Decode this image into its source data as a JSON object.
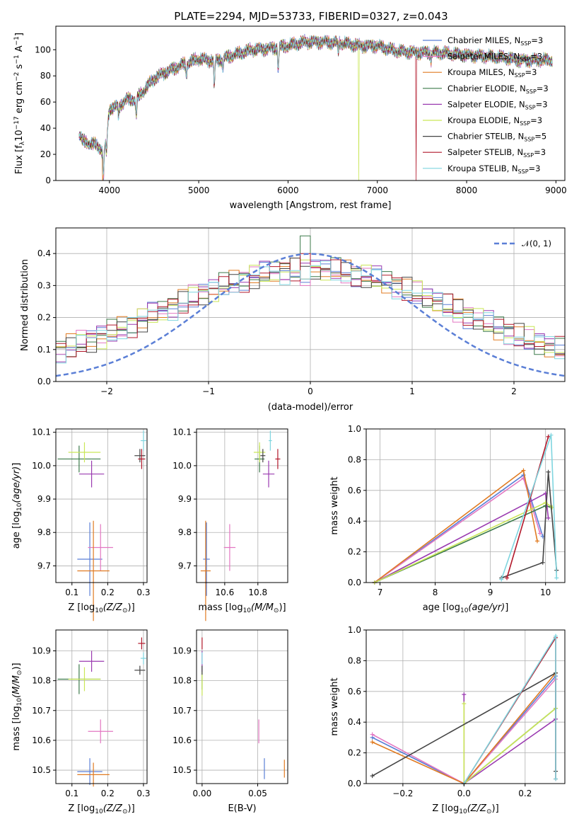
{
  "chart_data": [
    {
      "id": "spectrum",
      "type": "line",
      "title": "PLATE=2294, MJD=53733, FIBERID=0327, z=0.043",
      "xlabel": "wavelength [Angstrom, rest frame]",
      "ylabel": "Flux [f_λ 10^-17 erg cm^-2 s^-1 A^-1]",
      "xlim": [
        3400,
        9100
      ],
      "ylim": [
        0,
        118
      ],
      "xticks": [
        4000,
        5000,
        6000,
        7000,
        8000,
        9000
      ],
      "yticks": [
        0,
        20,
        40,
        60,
        80,
        100
      ],
      "legend_position": "top-right",
      "grid": false,
      "continuum": {
        "x": [
          3660,
          3700,
          3800,
          3850,
          3900,
          3930,
          3960,
          4000,
          4100,
          4200,
          4300,
          4400,
          4500,
          4600,
          4800,
          5000,
          5100,
          5200,
          5400,
          5600,
          5800,
          6000,
          6200,
          6400,
          6600,
          6800,
          7000,
          7200,
          7400,
          7600,
          7800,
          8000,
          8200,
          8400,
          8600,
          8800,
          8960
        ],
        "y": [
          36,
          30,
          28,
          27,
          25,
          20,
          30,
          55,
          57,
          62,
          62,
          70,
          78,
          82,
          88,
          93,
          92,
          92,
          96,
          100,
          101,
          103,
          106,
          106,
          105,
          103,
          103,
          99,
          98,
          98,
          97,
          96,
          95,
          94,
          92,
          92,
          92
        ]
      },
      "series": [
        {
          "name": "Chabrier MILES, N_SSP=3",
          "color": "#5b7fd6",
          "drop_at": null
        },
        {
          "name": "Salpeter MILES, N_SSP=3",
          "color": "#e377c2",
          "drop_at": null
        },
        {
          "name": "Kroupa MILES, N_SSP=3",
          "color": "#e07b22",
          "drop_at": 3920
        },
        {
          "name": "Chabrier ELODIE, N_SSP=3",
          "color": "#3c7a4a",
          "drop_at": null
        },
        {
          "name": "Salpeter ELODIE, N_SSP=3",
          "color": "#9a3ab0",
          "drop_at": null
        },
        {
          "name": "Kroupa ELODIE, N_SSP=3",
          "color": "#c9e657",
          "drop_at": 6790
        },
        {
          "name": "Chabrier STELIB, N_SSP=5",
          "color": "#444444",
          "drop_at": null
        },
        {
          "name": "Salpeter STELIB, N_SSP=3",
          "color": "#b2182b",
          "drop_at": 7430
        },
        {
          "name": "Kroupa STELIB, N_SSP=3",
          "color": "#7fd5df",
          "drop_at": null
        }
      ]
    },
    {
      "id": "residuals",
      "type": "step-histogram",
      "xlabel": "(data-model)/error",
      "ylabel": "Normed distribution",
      "xlim": [
        -2.5,
        2.5
      ],
      "ylim": [
        0,
        0.48
      ],
      "xticks": [
        -2,
        -1,
        0,
        1,
        2
      ],
      "yticks": [
        0.0,
        0.1,
        0.2,
        0.3,
        0.4
      ],
      "grid": true,
      "legend_position": "top-right",
      "gaussian": {
        "name": "𝒩(0, 1)",
        "mean": 0,
        "sigma": 1,
        "color": "#5b7fd6"
      },
      "bin_width": 0.1,
      "series_colors": [
        "#5b7fd6",
        "#e377c2",
        "#e07b22",
        "#3c7a4a",
        "#9a3ab0",
        "#c9e657",
        "#444444",
        "#b2182b",
        "#7fd5df"
      ],
      "peak_values": [
        0.31,
        0.3,
        0.32,
        0.455,
        0.37,
        0.38,
        0.36,
        0.4,
        0.32
      ]
    },
    {
      "id": "age_vs_Z",
      "type": "scatter-errorbar",
      "xlabel": "Z [log10(Z/Z⊙)]",
      "ylabel": "age [log10(age/yr)]",
      "xlim": [
        0.055,
        0.31
      ],
      "ylim": [
        9.65,
        10.11
      ],
      "xticks": [
        0.1,
        0.2,
        0.3
      ],
      "xtick_labels": [
        "0.1",
        "0.2",
        "0.3"
      ],
      "yticks": [
        9.7,
        9.8,
        9.9,
        10.0,
        10.1
      ],
      "grid": true,
      "points": [
        {
          "color": "#5b7fd6",
          "x": 0.15,
          "xerr": 0.035,
          "y": 9.72,
          "yerr": 0.11
        },
        {
          "color": "#e377c2",
          "x": 0.18,
          "xerr": 0.035,
          "y": 9.755,
          "yerr": 0.07
        },
        {
          "color": "#e07b22",
          "x": 0.16,
          "xerr": 0.045,
          "y": 9.685,
          "yerr": 0.15
        },
        {
          "color": "#3c7a4a",
          "x": 0.12,
          "xerr": 0.06,
          "y": 10.02,
          "yerr": 0.04
        },
        {
          "color": "#9a3ab0",
          "x": 0.155,
          "xerr": 0.035,
          "y": 9.975,
          "yerr": 0.04
        },
        {
          "color": "#c9e657",
          "x": 0.135,
          "xerr": 0.045,
          "y": 10.04,
          "yerr": 0.03
        },
        {
          "color": "#444444",
          "x": 0.29,
          "xerr": 0.015,
          "y": 10.03,
          "yerr": 0.02
        },
        {
          "color": "#b2182b",
          "x": 0.295,
          "xerr": 0.01,
          "y": 10.02,
          "yerr": 0.03
        },
        {
          "color": "#7fd5df",
          "x": 0.3,
          "xerr": 0.008,
          "y": 10.075,
          "yerr": 0.03
        }
      ]
    },
    {
      "id": "age_vs_mass",
      "type": "scatter-errorbar",
      "xlabel": "mass [log10(M/M⊙)]",
      "ylabel": "",
      "xlim": [
        10.43,
        10.98
      ],
      "ylim": [
        9.65,
        10.11
      ],
      "xticks": [
        10.6,
        10.8
      ],
      "xtick_labels": [
        "10.6",
        "10.8"
      ],
      "yticks": [
        9.7,
        9.8,
        9.9,
        10.0,
        10.1
      ],
      "grid": true,
      "points": [
        {
          "color": "#5b7fd6",
          "x": 10.49,
          "xerr": 0.02,
          "y": 9.72,
          "yerr": 0.11
        },
        {
          "color": "#e377c2",
          "x": 10.63,
          "xerr": 0.035,
          "y": 9.755,
          "yerr": 0.07
        },
        {
          "color": "#e07b22",
          "x": 10.485,
          "xerr": 0.03,
          "y": 9.685,
          "yerr": 0.15
        },
        {
          "color": "#3c7a4a",
          "x": 10.81,
          "xerr": 0.03,
          "y": 10.02,
          "yerr": 0.04
        },
        {
          "color": "#9a3ab0",
          "x": 10.865,
          "xerr": 0.035,
          "y": 9.975,
          "yerr": 0.04
        },
        {
          "color": "#c9e657",
          "x": 10.81,
          "xerr": 0.035,
          "y": 10.04,
          "yerr": 0.03
        },
        {
          "color": "#444444",
          "x": 10.83,
          "xerr": 0.015,
          "y": 10.03,
          "yerr": 0.02
        },
        {
          "color": "#b2182b",
          "x": 10.92,
          "xerr": 0.015,
          "y": 10.02,
          "yerr": 0.03
        },
        {
          "color": "#7fd5df",
          "x": 10.875,
          "xerr": 0.01,
          "y": 10.075,
          "yerr": 0.03
        }
      ]
    },
    {
      "id": "massweight_vs_age",
      "type": "line",
      "xlabel": "age [log10(age/yr)]",
      "ylabel": "mass weight",
      "xlim": [
        6.75,
        10.35
      ],
      "ylim": [
        0,
        1
      ],
      "xticks": [
        7,
        8,
        9,
        10
      ],
      "yticks": [
        0.0,
        0.2,
        0.4,
        0.6,
        0.8,
        1.0
      ],
      "grid": true,
      "series": [
        {
          "color": "#5b7fd6",
          "x": [
            6.9,
            9.6,
            9.95
          ],
          "y": [
            0.0,
            0.7,
            0.3
          ]
        },
        {
          "color": "#e377c2",
          "x": [
            6.9,
            9.6,
            9.9
          ],
          "y": [
            0.0,
            0.68,
            0.32
          ]
        },
        {
          "color": "#e07b22",
          "x": [
            6.9,
            9.6,
            9.85
          ],
          "y": [
            0.0,
            0.73,
            0.27
          ]
        },
        {
          "color": "#3c7a4a",
          "x": [
            6.9,
            10.0,
            10.1
          ],
          "y": [
            0.0,
            0.5,
            0.49
          ]
        },
        {
          "color": "#9a3ab0",
          "x": [
            6.9,
            10.0,
            10.05
          ],
          "y": [
            0.0,
            0.58,
            0.42
          ]
        },
        {
          "color": "#c9e657",
          "x": [
            6.9,
            10.0,
            10.12
          ],
          "y": [
            0.0,
            0.52,
            0.49
          ]
        },
        {
          "color": "#444444",
          "x": [
            9.2,
            9.95,
            10.05,
            10.2
          ],
          "y": [
            0.03,
            0.13,
            0.72,
            0.08
          ]
        },
        {
          "color": "#b2182b",
          "x": [
            9.3,
            10.05
          ],
          "y": [
            0.03,
            0.95
          ]
        },
        {
          "color": "#7fd5df",
          "x": [
            9.2,
            10.1,
            10.2
          ],
          "y": [
            0.02,
            0.96,
            0.03
          ]
        }
      ]
    },
    {
      "id": "mass_vs_Z",
      "type": "scatter-errorbar",
      "xlabel": "Z [log10(Z/Z⊙)]",
      "ylabel": "mass [log10(M/M⊙)]",
      "xlim": [
        0.055,
        0.31
      ],
      "ylim": [
        10.455,
        10.97
      ],
      "xticks": [
        0.1,
        0.2,
        0.3
      ],
      "xtick_labels": [
        "0.1",
        "0.2",
        "0.3"
      ],
      "yticks": [
        10.5,
        10.6,
        10.7,
        10.8,
        10.9
      ],
      "grid": true,
      "points": [
        {
          "color": "#5b7fd6",
          "x": 0.15,
          "xerr": 0.035,
          "y": 10.495,
          "yerr": 0.045
        },
        {
          "color": "#e377c2",
          "x": 0.18,
          "xerr": 0.035,
          "y": 10.63,
          "yerr": 0.04
        },
        {
          "color": "#e07b22",
          "x": 0.16,
          "xerr": 0.045,
          "y": 10.485,
          "yerr": 0.04
        },
        {
          "color": "#3c7a4a",
          "x": 0.12,
          "xerr": 0.06,
          "y": 10.805,
          "yerr": 0.05
        },
        {
          "color": "#9a3ab0",
          "x": 0.155,
          "xerr": 0.035,
          "y": 10.865,
          "yerr": 0.035
        },
        {
          "color": "#c9e657",
          "x": 0.135,
          "xerr": 0.045,
          "y": 10.805,
          "yerr": 0.04
        },
        {
          "color": "#444444",
          "x": 0.29,
          "xerr": 0.015,
          "y": 10.835,
          "yerr": 0.015
        },
        {
          "color": "#b2182b",
          "x": 0.295,
          "xerr": 0.01,
          "y": 10.925,
          "yerr": 0.02
        },
        {
          "color": "#7fd5df",
          "x": 0.3,
          "xerr": 0.008,
          "y": 10.875,
          "yerr": 0.02
        }
      ]
    },
    {
      "id": "mass_vs_ebv",
      "type": "scatter-errorbar",
      "xlabel": "E(B-V)",
      "ylabel": "",
      "xlim": [
        -0.005,
        0.077
      ],
      "ylim": [
        10.455,
        10.97
      ],
      "xticks": [
        0.0,
        0.05
      ],
      "xtick_labels": [
        "0.00",
        "0.05"
      ],
      "yticks": [
        10.5,
        10.6,
        10.7,
        10.8,
        10.9
      ],
      "grid": true,
      "points": [
        {
          "color": "#5b7fd6",
          "x": 0.056,
          "xerr": 0.0,
          "y": 10.505,
          "yerr": 0.035
        },
        {
          "color": "#e377c2",
          "x": 0.051,
          "xerr": 0.0,
          "y": 10.63,
          "yerr": 0.04
        },
        {
          "color": "#e07b22",
          "x": 0.074,
          "xerr": 0.0,
          "y": 10.505,
          "yerr": 0.03
        },
        {
          "color": "#3c7a4a",
          "x": 0.0,
          "xerr": 0.0,
          "y": 10.81,
          "yerr": 0.04
        },
        {
          "color": "#9a3ab0",
          "x": 0.0,
          "xerr": 0.0,
          "y": 10.865,
          "yerr": 0.035
        },
        {
          "color": "#c9e657",
          "x": 0.0,
          "xerr": 0.0,
          "y": 10.79,
          "yerr": 0.04
        },
        {
          "color": "#444444",
          "x": 0.0,
          "xerr": 0.0,
          "y": 10.835,
          "yerr": 0.015
        },
        {
          "color": "#b2182b",
          "x": 0.0,
          "xerr": 0.0,
          "y": 10.925,
          "yerr": 0.02
        },
        {
          "color": "#7fd5df",
          "x": 0.0,
          "xerr": 0.0,
          "y": 10.875,
          "yerr": 0.02
        }
      ]
    },
    {
      "id": "massweight_vs_Z",
      "type": "line",
      "xlabel": "Z [log10(Z/Z⊙)]",
      "ylabel": "mass weight",
      "xlim": [
        -0.32,
        0.33
      ],
      "ylim": [
        0,
        1
      ],
      "xticks": [
        -0.2,
        0.0,
        0.2
      ],
      "xtick_labels": [
        "−0.2",
        "0.0",
        "0.2"
      ],
      "yticks": [
        0.0,
        0.2,
        0.4,
        0.6,
        0.8,
        1.0
      ],
      "grid": true,
      "series": [
        {
          "color": "#5b7fd6",
          "x": [
            -0.3,
            0.0,
            0.3
          ],
          "y": [
            0.3,
            0.0,
            0.7
          ]
        },
        {
          "color": "#e377c2",
          "x": [
            -0.3,
            0.0,
            0.3
          ],
          "y": [
            0.32,
            0.0,
            0.68
          ]
        },
        {
          "color": "#e07b22",
          "x": [
            -0.3,
            0.0,
            0.3
          ],
          "y": [
            0.27,
            0.0,
            0.72
          ]
        },
        {
          "color": "#3c7a4a",
          "x": [
            0.0,
            0.3
          ],
          "y": [
            0.0,
            0.49
          ]
        },
        {
          "color": "#9a3ab0",
          "x": [
            0.0,
            0.0,
            0.3
          ],
          "y": [
            0.58,
            0.0,
            0.42
          ]
        },
        {
          "color": "#c9e657",
          "x": [
            0.0,
            0.0,
            0.3
          ],
          "y": [
            0.52,
            0.0,
            0.49
          ]
        },
        {
          "color": "#444444",
          "x": [
            -0.3,
            0.3,
            0.3
          ],
          "y": [
            0.05,
            0.72,
            0.08
          ]
        },
        {
          "color": "#b2182b",
          "x": [
            0.0,
            0.3,
            0.3
          ],
          "y": [
            0.0,
            0.95,
            0.03
          ]
        },
        {
          "color": "#7fd5df",
          "x": [
            0.0,
            0.3,
            0.3
          ],
          "y": [
            0.0,
            0.96,
            0.03
          ]
        }
      ]
    }
  ]
}
